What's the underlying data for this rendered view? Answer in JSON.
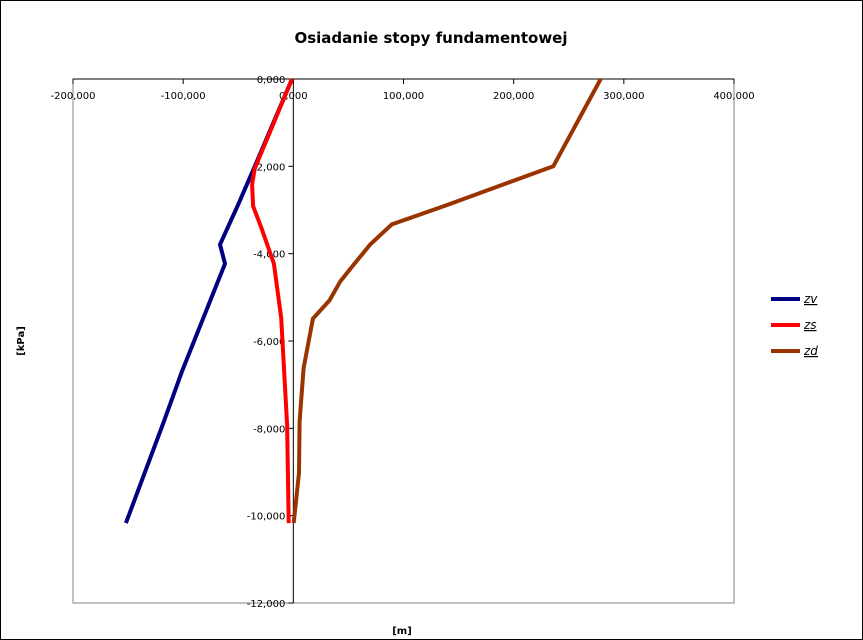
{
  "chart_data": {
    "type": "line",
    "title": "Osiadanie stopy fundamentowej",
    "xlabel": "[m]",
    "ylabel": "[kPa]",
    "xlim": [
      -200000,
      400000
    ],
    "ylim": [
      -12,
      0
    ],
    "xticks": [
      -200000,
      -100000,
      0,
      100000,
      200000,
      300000,
      400000
    ],
    "xtick_labels": [
      "-200,000",
      "-100,000",
      "0,000",
      "100,000",
      "200,000",
      "300,000",
      "400,000"
    ],
    "yticks": [
      0,
      -2,
      -4,
      -6,
      -8,
      -10,
      -12
    ],
    "ytick_labels": [
      "0,000",
      "-2,000",
      "-4,000",
      "-6,000",
      "-8,000",
      "-10,000",
      "-12,000"
    ],
    "grid": false,
    "legend_position": "right",
    "series": [
      {
        "name": "zv",
        "color": "#000080",
        "points": [
          [
            -1200,
            0
          ],
          [
            -35000,
            -2.0
          ],
          [
            -50000,
            -2.87
          ],
          [
            -66600,
            -3.79
          ],
          [
            -62000,
            -4.23
          ],
          [
            -101000,
            -6.69
          ],
          [
            -118000,
            -7.88
          ],
          [
            -152000,
            -10.17
          ]
        ]
      },
      {
        "name": "zs",
        "color": "#ff0000",
        "points": [
          [
            -1200,
            0
          ],
          [
            -35000,
            -2.05
          ],
          [
            -37400,
            -2.41
          ],
          [
            -36500,
            -2.91
          ],
          [
            -29000,
            -3.41
          ],
          [
            -17600,
            -4.23
          ],
          [
            -11000,
            -5.47
          ],
          [
            -5700,
            -7.92
          ],
          [
            -4200,
            -10.17
          ]
        ]
      },
      {
        "name": "zd",
        "color": "#993300",
        "points": [
          [
            279000,
            0
          ],
          [
            236000,
            -2.0
          ],
          [
            189000,
            -2.43
          ],
          [
            138000,
            -2.9
          ],
          [
            89400,
            -3.33
          ],
          [
            69800,
            -3.79
          ],
          [
            54800,
            -4.25
          ],
          [
            42700,
            -4.63
          ],
          [
            32800,
            -5.07
          ],
          [
            17800,
            -5.49
          ],
          [
            9300,
            -6.62
          ],
          [
            5700,
            -7.84
          ],
          [
            5100,
            -9.02
          ],
          [
            300,
            -10.17
          ]
        ]
      }
    ]
  }
}
